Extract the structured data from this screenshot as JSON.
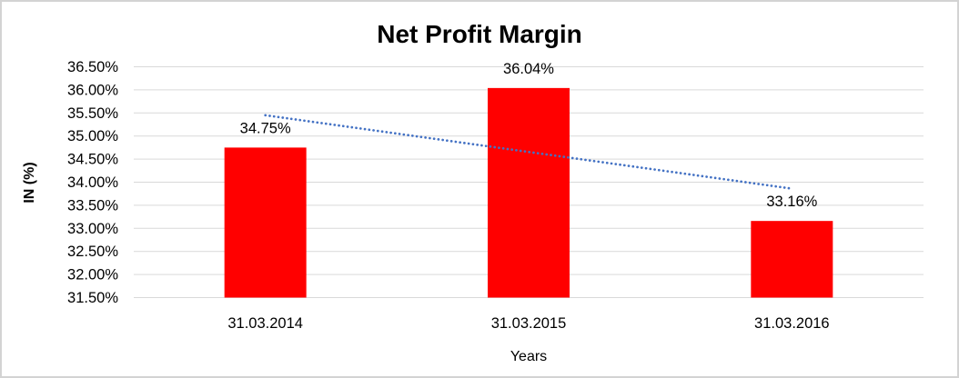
{
  "chart_data": {
    "type": "bar",
    "title": "Net Profit Margin",
    "xlabel": "Years",
    "ylabel": "IN (%)",
    "categories": [
      "31.03.2014",
      "31.03.2015",
      "31.03.2016"
    ],
    "values": [
      34.75,
      36.04,
      33.16
    ],
    "data_labels": [
      "34.75%",
      "36.04%",
      "33.16%"
    ],
    "yticks": [
      "36.50%",
      "36.00%",
      "35.50%",
      "35.00%",
      "34.50%",
      "34.00%",
      "33.50%",
      "33.00%",
      "32.50%",
      "32.00%",
      "31.50%"
    ],
    "ylim": [
      31.5,
      36.5
    ],
    "grid": "horizontal",
    "legend": "none",
    "bar_color": "#FF0000",
    "gridline_color": "#D9D9D9",
    "text_color": "#000000",
    "frame_color": "#D3D3D3",
    "trendline": {
      "type": "linear",
      "style": "dotted",
      "color": "#4472C4",
      "start_value": 35.45,
      "end_value": 33.86
    }
  }
}
